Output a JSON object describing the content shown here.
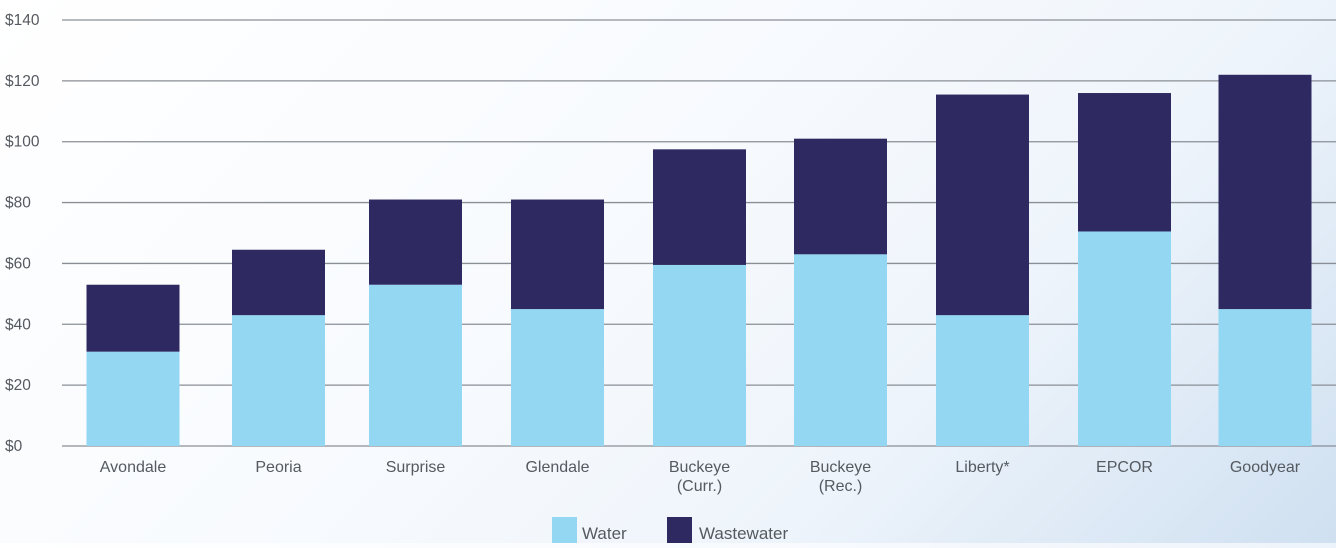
{
  "chart_data": {
    "type": "bar",
    "stacked": true,
    "categories": [
      [
        "Avondale"
      ],
      [
        "Peoria"
      ],
      [
        "Surprise"
      ],
      [
        "Glendale"
      ],
      [
        "Buckeye",
        "(Curr.)"
      ],
      [
        "Buckeye",
        "(Rec.)"
      ],
      [
        "Liberty*"
      ],
      [
        "EPCOR"
      ],
      [
        "Goodyear"
      ]
    ],
    "series": [
      {
        "name": "Water",
        "color": "#93d7f3",
        "values": [
          31,
          43,
          53,
          45,
          59.5,
          63,
          43,
          70.5,
          45
        ]
      },
      {
        "name": "Wastewater",
        "color": "#2e2a61",
        "values": [
          22,
          21.5,
          28,
          36,
          38,
          38,
          72.5,
          45.5,
          77
        ]
      }
    ],
    "y_ticks": [
      "$0",
      "$20",
      "$40",
      "$60",
      "$80",
      "$100",
      "$120",
      "$140"
    ],
    "ylim": [
      0,
      140
    ],
    "grid": true,
    "grid_color": "#8a8f96",
    "legend_position": "bottom-center"
  }
}
